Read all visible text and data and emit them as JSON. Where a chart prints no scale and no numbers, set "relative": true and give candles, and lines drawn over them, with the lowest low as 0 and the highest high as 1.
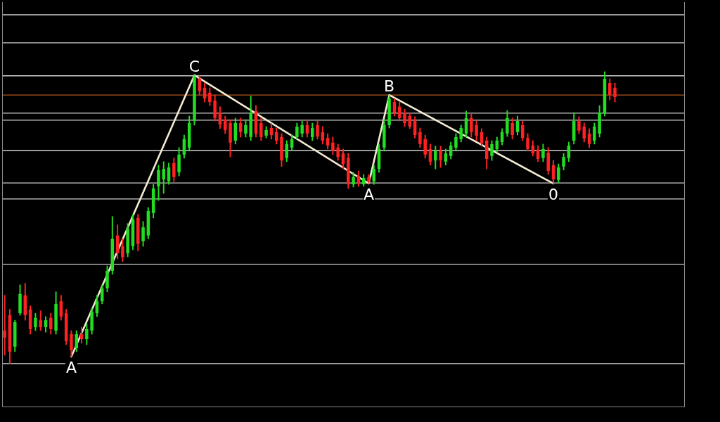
{
  "chart_data": {
    "type": "candlestick",
    "relative": true,
    "legend": false,
    "categories": [
      null,
      null,
      null,
      null,
      null,
      null,
      null,
      null,
      null,
      null,
      null,
      null,
      null,
      null,
      null,
      null,
      null,
      null,
      null,
      null,
      null,
      null,
      null,
      null,
      null,
      null,
      null,
      null,
      null,
      null,
      null,
      null,
      null,
      null,
      null,
      null,
      null,
      null,
      null,
      null,
      null,
      null,
      null,
      null,
      null,
      null,
      null,
      null,
      null,
      null,
      null,
      null,
      null,
      null,
      null,
      null,
      null,
      null,
      null,
      null,
      null,
      null,
      null,
      null,
      null,
      null,
      null,
      null,
      null,
      null,
      null,
      null,
      null,
      null,
      null,
      null,
      null,
      null,
      null,
      null,
      null,
      null,
      null,
      null,
      null,
      null,
      null,
      null,
      null,
      null,
      null,
      null,
      null,
      null,
      null,
      null,
      null,
      null,
      null,
      null,
      null,
      null,
      null,
      null,
      null,
      null,
      null,
      null,
      null,
      null,
      null,
      null,
      null,
      null,
      null,
      null,
      null,
      null,
      null,
      null
    ],
    "ohlc": [
      [
        0.113,
        0.234,
        0.029,
        0.089
      ],
      [
        0.166,
        0.186,
        0,
        0.041
      ],
      [
        0.058,
        0.149,
        0.041,
        0.142
      ],
      [
        0.173,
        0.27,
        0.166,
        0.239
      ],
      [
        0.234,
        0.275,
        0.149,
        0.166
      ],
      [
        0.186,
        0.198,
        0.101,
        0.118
      ],
      [
        0.125,
        0.173,
        0.113,
        0.157
      ],
      [
        0.149,
        0.181,
        0.113,
        0.125
      ],
      [
        0.125,
        0.161,
        0.108,
        0.149
      ],
      [
        0.157,
        0.173,
        0.101,
        0.118
      ],
      [
        0.113,
        0.246,
        0.101,
        0.205
      ],
      [
        0.214,
        0.234,
        0.149,
        0.161
      ],
      [
        0.173,
        0.186,
        0.065,
        0.077
      ],
      [
        0.101,
        0.113,
        0.024,
        0.046
      ],
      [
        0.053,
        0.113,
        0.041,
        0.101
      ],
      [
        0.101,
        0.125,
        0.07,
        0.084
      ],
      [
        0.084,
        0.137,
        0.065,
        0.118
      ],
      [
        0.113,
        0.19,
        0.101,
        0.178
      ],
      [
        0.173,
        0.234,
        0.161,
        0.214
      ],
      [
        0.214,
        0.27,
        0.205,
        0.258
      ],
      [
        0.258,
        0.335,
        0.246,
        0.318
      ],
      [
        0.318,
        0.504,
        0.306,
        0.427
      ],
      [
        0.439,
        0.475,
        0.359,
        0.378
      ],
      [
        0.402,
        0.427,
        0.349,
        0.364
      ],
      [
        0.378,
        0.48,
        0.366,
        0.463
      ],
      [
        0.402,
        0.511,
        0.39,
        0.494
      ],
      [
        0.499,
        0.511,
        0.386,
        0.41
      ],
      [
        0.419,
        0.487,
        0.402,
        0.467
      ],
      [
        0.439,
        0.535,
        0.427,
        0.523
      ],
      [
        0.516,
        0.614,
        0.499,
        0.6
      ],
      [
        0.607,
        0.68,
        0.559,
        0.663
      ],
      [
        0.631,
        0.692,
        0.583,
        0.667
      ],
      [
        0.624,
        0.687,
        0.614,
        0.672
      ],
      [
        0.687,
        0.704,
        0.624,
        0.639
      ],
      [
        0.655,
        0.74,
        0.643,
        0.716
      ],
      [
        0.716,
        0.783,
        0.704,
        0.769
      ],
      [
        0.74,
        0.848,
        0.728,
        0.824
      ],
      [
        0.831,
        0.988,
        0.817,
        0.981
      ],
      [
        0.976,
        0.986,
        0.92,
        0.933
      ],
      [
        0.945,
        0.961,
        0.896,
        0.908
      ],
      [
        0.928,
        0.945,
        0.884,
        0.896
      ],
      [
        0.901,
        0.92,
        0.831,
        0.841
      ],
      [
        0.86,
        0.88,
        0.805,
        0.819
      ],
      [
        0.836,
        0.848,
        0.788,
        0.8
      ],
      [
        0.824,
        0.836,
        0.708,
        0.757
      ],
      [
        0.764,
        0.841,
        0.752,
        0.824
      ],
      [
        0.824,
        0.841,
        0.776,
        0.793
      ],
      [
        0.788,
        0.836,
        0.776,
        0.817
      ],
      [
        0.776,
        0.916,
        0.764,
        0.86
      ],
      [
        0.865,
        0.884,
        0.776,
        0.788
      ],
      [
        0.824,
        0.841,
        0.764,
        0.776
      ],
      [
        0.781,
        0.812,
        0.773,
        0.8
      ],
      [
        0.807,
        0.822,
        0.769,
        0.783
      ],
      [
        0.793,
        0.807,
        0.752,
        0.764
      ],
      [
        0.776,
        0.788,
        0.675,
        0.696
      ],
      [
        0.704,
        0.764,
        0.692,
        0.752
      ],
      [
        0.74,
        0.783,
        0.73,
        0.769
      ],
      [
        0.776,
        0.824,
        0.769,
        0.812
      ],
      [
        0.788,
        0.831,
        0.776,
        0.817
      ],
      [
        0.817,
        0.836,
        0.776,
        0.788
      ],
      [
        0.776,
        0.824,
        0.764,
        0.807
      ],
      [
        0.817,
        0.831,
        0.769,
        0.778
      ],
      [
        0.793,
        0.812,
        0.752,
        0.764
      ],
      [
        0.773,
        0.788,
        0.735,
        0.747
      ],
      [
        0.757,
        0.776,
        0.716,
        0.728
      ],
      [
        0.74,
        0.752,
        0.696,
        0.708
      ],
      [
        0.72,
        0.735,
        0.667,
        0.684
      ],
      [
        0.704,
        0.72,
        0.6,
        0.614
      ],
      [
        0.614,
        0.655,
        0.605,
        0.639
      ],
      [
        0.643,
        0.66,
        0.607,
        0.619
      ],
      [
        0.614,
        0.648,
        0.607,
        0.636
      ],
      [
        0.639,
        0.648,
        0.617,
        0.624
      ],
      [
        0.624,
        0.68,
        0.614,
        0.667
      ],
      [
        0.667,
        0.752,
        0.655,
        0.735
      ],
      [
        0.74,
        0.836,
        0.728,
        0.817
      ],
      [
        0.817,
        0.92,
        0.807,
        0.908
      ],
      [
        0.896,
        0.908,
        0.848,
        0.86
      ],
      [
        0.88,
        0.896,
        0.831,
        0.841
      ],
      [
        0.86,
        0.872,
        0.812,
        0.824
      ],
      [
        0.848,
        0.86,
        0.805,
        0.812
      ],
      [
        0.831,
        0.846,
        0.773,
        0.783
      ],
      [
        0.793,
        0.807,
        0.74,
        0.752
      ],
      [
        0.769,
        0.783,
        0.704,
        0.716
      ],
      [
        0.735,
        0.752,
        0.68,
        0.692
      ],
      [
        0.696,
        0.745,
        0.667,
        0.728
      ],
      [
        0.728,
        0.745,
        0.672,
        0.696
      ],
      [
        0.692,
        0.735,
        0.68,
        0.72
      ],
      [
        0.711,
        0.759,
        0.701,
        0.747
      ],
      [
        0.74,
        0.788,
        0.728,
        0.776
      ],
      [
        0.769,
        0.817,
        0.759,
        0.807
      ],
      [
        0.788,
        0.865,
        0.776,
        0.841
      ],
      [
        0.841,
        0.855,
        0.776,
        0.793
      ],
      [
        0.817,
        0.831,
        0.764,
        0.781
      ],
      [
        0.793,
        0.805,
        0.745,
        0.754
      ],
      [
        0.764,
        0.776,
        0.667,
        0.701
      ],
      [
        0.711,
        0.764,
        0.696,
        0.752
      ],
      [
        0.735,
        0.776,
        0.725,
        0.764
      ],
      [
        0.759,
        0.805,
        0.749,
        0.793
      ],
      [
        0.788,
        0.867,
        0.778,
        0.841
      ],
      [
        0.824,
        0.841,
        0.769,
        0.783
      ],
      [
        0.793,
        0.848,
        0.783,
        0.831
      ],
      [
        0.817,
        0.831,
        0.764,
        0.773
      ],
      [
        0.773,
        0.788,
        0.728,
        0.735
      ],
      [
        0.747,
        0.764,
        0.711,
        0.72
      ],
      [
        0.733,
        0.747,
        0.692,
        0.701
      ],
      [
        0.704,
        0.752,
        0.692,
        0.735
      ],
      [
        0.723,
        0.74,
        0.648,
        0.66
      ],
      [
        0.68,
        0.696,
        0.617,
        0.631
      ],
      [
        0.629,
        0.684,
        0.619,
        0.672
      ],
      [
        0.675,
        0.72,
        0.663,
        0.708
      ],
      [
        0.704,
        0.759,
        0.692,
        0.747
      ],
      [
        0.764,
        0.86,
        0.752,
        0.831
      ],
      [
        0.831,
        0.846,
        0.788,
        0.798
      ],
      [
        0.812,
        0.824,
        0.759,
        0.771
      ],
      [
        0.788,
        0.805,
        0.74,
        0.752
      ],
      [
        0.764,
        0.824,
        0.752,
        0.812
      ],
      [
        0.788,
        0.884,
        0.776,
        0.86
      ],
      [
        0.86,
        1,
        0.848,
        0.976
      ],
      [
        0.961,
        0.976,
        0.904,
        0.92
      ],
      [
        0.945,
        0.961,
        0.896,
        0.913
      ]
    ],
    "colors": [
      "#ff2222",
      "#ff2222",
      "#22dd22",
      "#22dd22",
      "#ff2222",
      "#ff2222",
      "#22dd22",
      "#ff2222",
      "#22dd22",
      "#ff2222",
      "#22dd22",
      "#ff2222",
      "#ff2222",
      "#ff2222",
      "#22dd22",
      "#ff2222",
      "#22dd22",
      "#22dd22",
      "#22dd22",
      "#22dd22",
      "#22dd22",
      "#22dd22",
      "#ff2222",
      "#ff2222",
      "#22dd22",
      "#22dd22",
      "#ff2222",
      "#22dd22",
      "#22dd22",
      "#22dd22",
      "#22dd22",
      "#22dd22",
      "#22dd22",
      "#ff2222",
      "#22dd22",
      "#22dd22",
      "#22dd22",
      "#22dd22",
      "#ff2222",
      "#ff2222",
      "#ff2222",
      "#ff2222",
      "#ff2222",
      "#ff2222",
      "#ff2222",
      "#22dd22",
      "#ff2222",
      "#22dd22",
      "#22dd22",
      "#ff2222",
      "#ff2222",
      "#22dd22",
      "#ff2222",
      "#ff2222",
      "#ff2222",
      "#22dd22",
      "#22dd22",
      "#22dd22",
      "#22dd22",
      "#ff2222",
      "#22dd22",
      "#ff2222",
      "#ff2222",
      "#ff2222",
      "#ff2222",
      "#ff2222",
      "#ff2222",
      "#ff2222",
      "#22dd22",
      "#ff2222",
      "#22dd22",
      "#ff2222",
      "#22dd22",
      "#22dd22",
      "#22dd22",
      "#22dd22",
      "#ff2222",
      "#ff2222",
      "#ff2222",
      "#ff2222",
      "#ff2222",
      "#ff2222",
      "#ff2222",
      "#ff2222",
      "#22dd22",
      "#ff2222",
      "#22dd22",
      "#22dd22",
      "#22dd22",
      "#22dd22",
      "#22dd22",
      "#ff2222",
      "#ff2222",
      "#ff2222",
      "#ff2222",
      "#22dd22",
      "#22dd22",
      "#22dd22",
      "#22dd22",
      "#ff2222",
      "#22dd22",
      "#ff2222",
      "#ff2222",
      "#ff2222",
      "#ff2222",
      "#22dd22",
      "#ff2222",
      "#ff2222",
      "#22dd22",
      "#22dd22",
      "#22dd22",
      "#22dd22",
      "#ff2222",
      "#ff2222",
      "#ff2222",
      "#22dd22",
      "#22dd22",
      "#22dd22",
      "#ff2222",
      "#ff2222"
    ],
    "series": [
      {
        "type": "line",
        "color": "#f3ead2",
        "values": [
          null,
          null,
          null,
          null,
          null,
          null,
          null,
          null,
          null,
          null,
          null,
          null,
          null,
          0.024,
          null,
          null,
          null,
          null,
          null,
          null,
          null,
          null,
          null,
          null,
          null,
          null,
          null,
          null,
          null,
          null,
          null,
          null,
          null,
          null,
          null,
          null,
          null,
          0.988,
          null,
          null,
          null,
          null,
          null,
          null,
          null,
          null,
          null,
          null,
          null,
          null,
          null,
          null,
          null,
          null,
          null,
          null,
          null,
          null,
          null,
          null,
          null,
          null,
          null,
          null,
          null,
          null,
          null,
          null,
          null,
          null,
          null,
          0.617,
          null,
          null,
          null,
          0.92,
          null,
          null,
          null,
          null,
          null,
          null,
          null,
          null,
          null,
          null,
          null,
          null,
          null,
          null,
          null,
          null,
          null,
          null,
          null,
          null,
          null,
          null,
          null,
          null,
          null,
          null,
          null,
          null,
          null,
          null,
          null,
          0.617,
          null,
          null,
          null,
          null,
          null,
          null,
          null,
          null,
          null,
          null,
          null,
          null
        ]
      }
    ],
    "ref_lines": [
      {
        "axis": "y",
        "value": 1.195,
        "color": "#cfcfcf"
      },
      {
        "axis": "y",
        "value": 1.099,
        "color": "#cfcfcf"
      },
      {
        "axis": "y",
        "value": 0.986,
        "color": "#cfcfcf"
      },
      {
        "axis": "y",
        "value": 0.858,
        "color": "#cfcfcf"
      },
      {
        "axis": "y",
        "value": 0.834,
        "color": "#cfcfcf"
      },
      {
        "axis": "y",
        "value": 0.73,
        "color": "#cfcfcf"
      },
      {
        "axis": "y",
        "value": 0.619,
        "color": "#cfcfcf"
      },
      {
        "axis": "y",
        "value": 0.564,
        "color": "#cfcfcf"
      },
      {
        "axis": "y",
        "value": 0.34,
        "color": "#cfcfcf"
      },
      {
        "axis": "y",
        "value": 0,
        "color": "#cfcfcf"
      },
      {
        "axis": "y",
        "value": 0.92,
        "color": "#b5571c"
      }
    ],
    "annotations": [
      {
        "text": "A",
        "y": 0.024
      },
      {
        "text": "C",
        "y": 0.988
      },
      {
        "text": "A",
        "y": 0.617
      },
      {
        "text": "B",
        "y": 0.92
      },
      {
        "text": "0",
        "y": 0.617
      }
    ]
  }
}
